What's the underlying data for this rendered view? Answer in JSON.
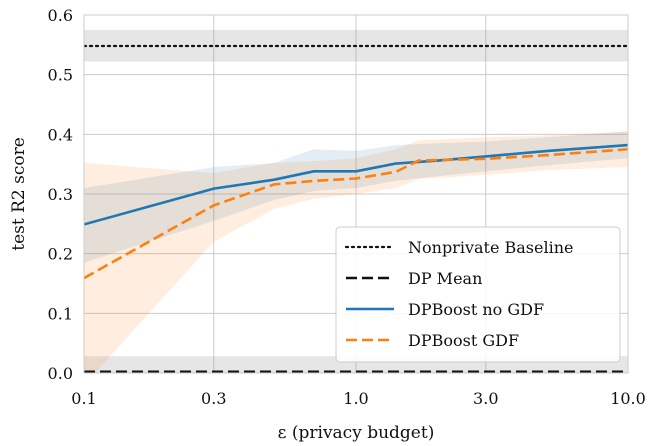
{
  "chart_data": {
    "type": "line",
    "xlabel": "ε (privacy budget)",
    "ylabel": "test R2 score",
    "x_scale": "log",
    "xlim": [
      0.1,
      10.0
    ],
    "ylim": [
      0.0,
      0.6
    ],
    "x_ticks": [
      0.1,
      0.3,
      1.0,
      3.0,
      10.0
    ],
    "x_tick_labels": [
      "0.1",
      "0.3",
      "1.0",
      "3.0",
      "10.0"
    ],
    "y_ticks": [
      0.0,
      0.1,
      0.2,
      0.3,
      0.4,
      0.5,
      0.6
    ],
    "y_tick_labels": [
      "0.0",
      "0.1",
      "0.2",
      "0.3",
      "0.4",
      "0.5",
      "0.6"
    ],
    "grid": true,
    "legend_position": "bottom-right",
    "series": [
      {
        "name": "Nonprivate Baseline",
        "color": "#111111",
        "linestyle": "dotted",
        "x": [
          0.1,
          10.0
        ],
        "y": [
          0.548,
          0.548
        ],
        "band_lower": [
          0.522,
          0.522
        ],
        "band_upper": [
          0.575,
          0.575
        ]
      },
      {
        "name": "DP Mean",
        "color": "#111111",
        "linestyle": "dashed",
        "x": [
          0.1,
          10.0
        ],
        "y": [
          0.002,
          0.002
        ],
        "band_lower": [
          -0.02,
          -0.02
        ],
        "band_upper": [
          0.028,
          0.028
        ]
      },
      {
        "name": "DPBoost no GDF",
        "color": "#1f77b4",
        "linestyle": "solid",
        "x": [
          0.1,
          0.3,
          0.5,
          0.7,
          1.0,
          1.4,
          2.0,
          3.0,
          5.0,
          10.0
        ],
        "y": [
          0.249,
          0.309,
          0.324,
          0.338,
          0.338,
          0.351,
          0.356,
          0.363,
          0.372,
          0.382
        ],
        "band_lower": [
          0.185,
          0.255,
          0.29,
          0.305,
          0.31,
          0.322,
          0.33,
          0.338,
          0.348,
          0.36
        ],
        "band_upper": [
          0.31,
          0.345,
          0.352,
          0.375,
          0.372,
          0.382,
          0.385,
          0.388,
          0.395,
          0.405
        ]
      },
      {
        "name": "DPBoost GDF",
        "color": "#ff7f0e",
        "linestyle": "dashed",
        "x": [
          0.1,
          0.3,
          0.5,
          0.7,
          1.0,
          1.4,
          1.7,
          3.0,
          5.0,
          10.0
        ],
        "y": [
          0.159,
          0.281,
          0.316,
          0.322,
          0.326,
          0.337,
          0.356,
          0.359,
          0.365,
          0.375
        ],
        "band_lower": [
          -0.02,
          0.22,
          0.275,
          0.292,
          0.3,
          0.31,
          0.325,
          0.332,
          0.34,
          0.345
        ],
        "band_upper": [
          0.352,
          0.335,
          0.352,
          0.355,
          0.36,
          0.375,
          0.39,
          0.395,
          0.398,
          0.405
        ]
      }
    ]
  }
}
